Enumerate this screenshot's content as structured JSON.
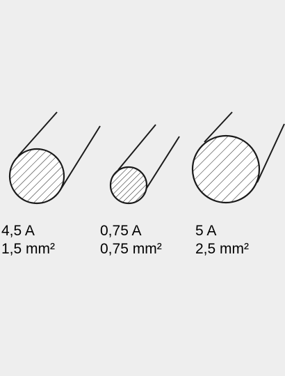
{
  "colors": {
    "background": "#eeeeee",
    "stroke": "#1a1a1a",
    "hatch": "#1a1a1a",
    "fill": "#ffffff",
    "text": "#000000"
  },
  "wires": [
    {
      "current": "4,5 A",
      "cross_section": "1,5 mm²"
    },
    {
      "current": "0,75 A",
      "cross_section": "0,75 mm²"
    },
    {
      "current": "5 A",
      "cross_section": "2,5 mm²"
    }
  ]
}
